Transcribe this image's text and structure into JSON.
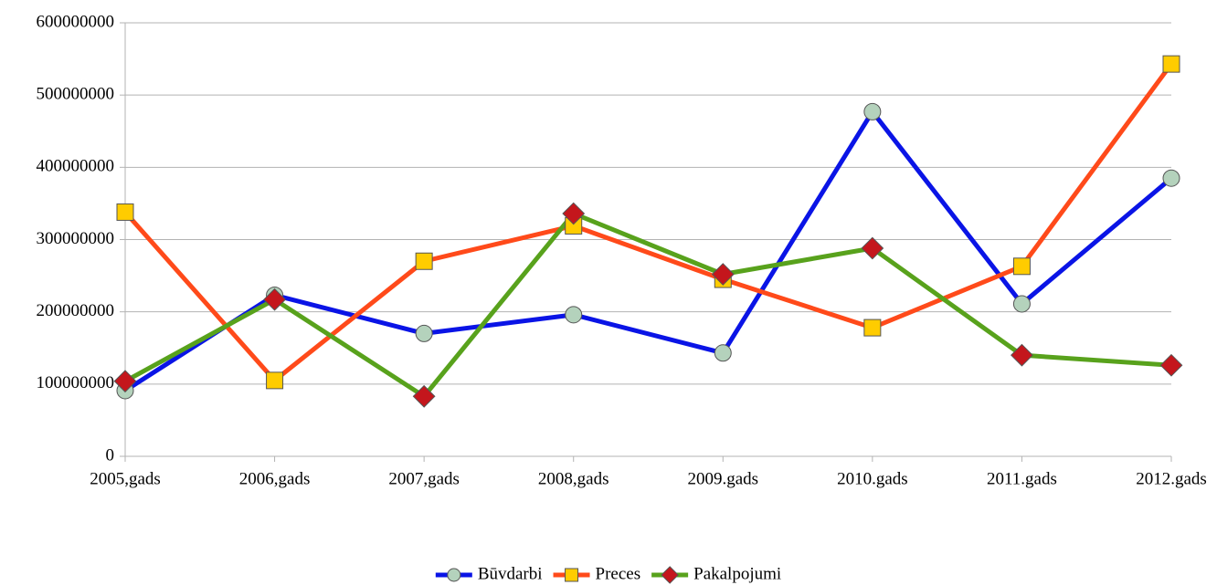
{
  "chart_data": {
    "type": "line",
    "categories": [
      "2005,gads",
      "2006,gads",
      "2007,gads",
      "2008,gads",
      "2009.gads",
      "2010.gads",
      "2011.gads",
      "2012.gads"
    ],
    "series": [
      {
        "name": "Būvdarbi",
        "color": "#0a14e6",
        "marker": "circle",
        "marker_color": "#b4d2bc",
        "values": [
          91000000,
          223000000,
          170000000,
          196000000,
          143000000,
          477000000,
          211000000,
          385000000
        ]
      },
      {
        "name": "Preces",
        "color": "#ff4a1a",
        "marker": "square",
        "marker_color": "#ffcc00",
        "values": [
          338000000,
          105000000,
          270000000,
          319000000,
          245000000,
          178000000,
          263000000,
          543000000
        ]
      },
      {
        "name": "Pakalpojumi",
        "color": "#58a21c",
        "marker": "diamond",
        "marker_color": "#c4161c",
        "values": [
          104000000,
          217000000,
          83000000,
          336000000,
          252000000,
          288000000,
          140000000,
          126000000
        ]
      }
    ],
    "ylim": [
      0,
      600000000
    ],
    "yticks": [
      0,
      100000000,
      200000000,
      300000000,
      400000000,
      500000000,
      600000000
    ],
    "grid": true,
    "legend": "bottom"
  }
}
